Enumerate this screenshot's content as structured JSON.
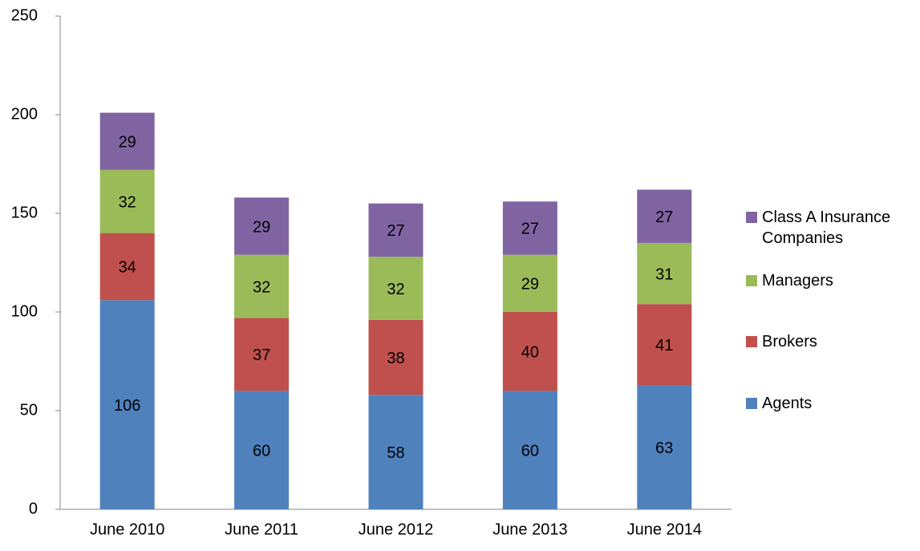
{
  "chart_data": {
    "type": "stacked_bar",
    "categories": [
      "June 2010",
      "June 2011",
      "June 2012",
      "June 2013",
      "June 2014"
    ],
    "series": [
      {
        "name": "Agents",
        "color": "#4f81bd",
        "values": [
          106,
          60,
          58,
          60,
          63
        ]
      },
      {
        "name": "Brokers",
        "color": "#c0504d",
        "values": [
          34,
          37,
          38,
          40,
          41
        ]
      },
      {
        "name": "Managers",
        "color": "#9bbb59",
        "values": [
          32,
          32,
          32,
          29,
          31
        ]
      },
      {
        "name": "Class A Insurance Companies",
        "color": "#8064a2",
        "values": [
          29,
          29,
          27,
          27,
          27
        ]
      }
    ],
    "ylim": [
      0,
      250
    ],
    "yticks": [
      0,
      50,
      100,
      150,
      200,
      250
    ],
    "grid": false,
    "legend": "right"
  }
}
